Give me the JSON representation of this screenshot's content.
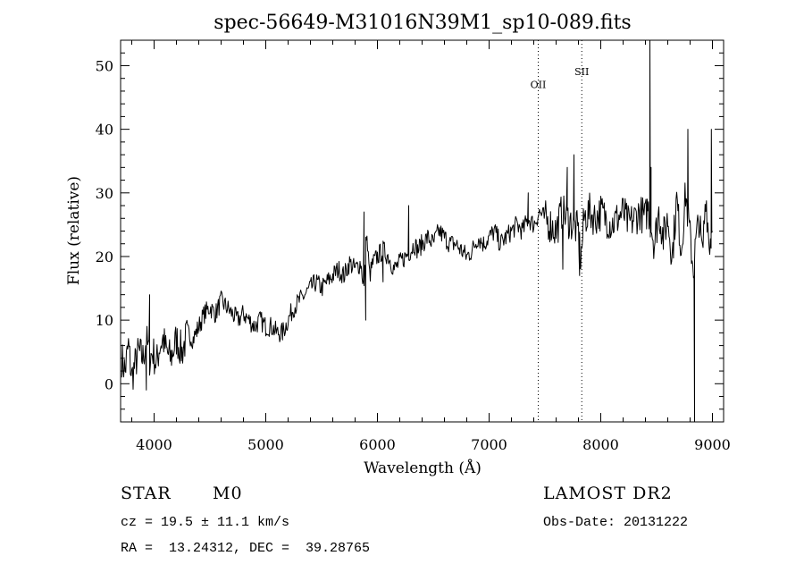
{
  "chart_data": {
    "type": "line",
    "title": "spec-56649-M31016N39M1_sp10-089.fits",
    "xlabel": "Wavelength (Å)",
    "ylabel": "Flux (relative)",
    "xlim": [
      3700,
      9100
    ],
    "ylim": [
      -6,
      54
    ],
    "x_ticks": [
      4000,
      5000,
      6000,
      7000,
      8000,
      9000
    ],
    "y_ticks": [
      0,
      10,
      20,
      30,
      40,
      50
    ],
    "grid": false,
    "line_color": "#000000",
    "series": [
      {
        "x": [
          3710,
          3740,
          3770,
          3800,
          3830,
          3860,
          3900,
          3930,
          3960,
          3990,
          4020,
          4050,
          4080,
          4110,
          4150,
          4200,
          4250,
          4300,
          4350,
          4400,
          4450,
          4500,
          4550,
          4600,
          4650,
          4700,
          4750,
          4800,
          4850,
          4900,
          4950,
          5000,
          5050,
          5100,
          5150,
          5200,
          5250,
          5300,
          5350,
          5400,
          5450,
          5500,
          5550,
          5600,
          5650,
          5700,
          5750,
          5800,
          5850,
          5880,
          5900,
          5930,
          5960,
          6000,
          6050,
          6100,
          6150,
          6200,
          6250,
          6300,
          6330,
          6360,
          6400,
          6450,
          6500,
          6550,
          6600,
          6650,
          6700,
          6750,
          6800,
          6850,
          6900,
          6950,
          7000,
          7050,
          7100,
          7150,
          7200,
          7250,
          7300,
          7350,
          7400,
          7450,
          7500,
          7550,
          7600,
          7650,
          7700,
          7750,
          7800,
          7820,
          7850,
          7900,
          7950,
          8000,
          8050,
          8100,
          8150,
          8200,
          8250,
          8300,
          8350,
          8400,
          8420,
          8450,
          8480,
          8520,
          8560,
          8600,
          8640,
          8680,
          8720,
          8760,
          8800,
          8830,
          8850,
          8880,
          8910,
          8940,
          8970,
          9000
        ],
        "y": [
          4,
          2,
          6,
          1,
          3,
          5,
          4,
          7,
          4,
          5,
          3,
          6,
          7,
          5,
          4,
          7,
          5,
          8,
          7,
          9,
          11,
          12,
          11,
          13,
          12,
          11,
          10,
          11,
          10,
          9,
          10,
          9,
          9,
          8,
          8,
          10,
          12,
          13,
          14,
          15,
          16,
          15,
          16,
          17,
          18,
          17,
          19,
          18,
          19,
          15,
          24,
          17,
          19,
          20,
          21,
          20,
          18,
          19,
          20,
          21,
          22,
          21,
          22,
          23,
          22,
          24,
          23,
          22,
          22,
          21,
          20,
          21,
          23,
          22,
          23,
          24,
          22,
          23,
          24,
          25,
          24,
          26,
          25,
          27,
          26,
          25,
          24,
          27,
          26,
          25,
          24,
          19,
          26,
          27,
          26,
          27,
          26,
          25,
          26,
          27,
          25,
          26,
          27,
          26,
          28,
          25,
          22,
          27,
          23,
          26,
          20,
          29,
          21,
          30,
          23,
          18,
          22,
          26,
          20,
          30,
          22,
          24
        ],
        "spikes": [
          {
            "x": 8440,
            "y": 54
          },
          {
            "x": 8840,
            "y": -6
          },
          {
            "x": 8780,
            "y": 40
          },
          {
            "x": 8990,
            "y": 40
          },
          {
            "x": 3960,
            "y": 14
          },
          {
            "x": 3930,
            "y": -1
          },
          {
            "x": 7760,
            "y": 36
          },
          {
            "x": 7700,
            "y": 34
          },
          {
            "x": 7660,
            "y": 18
          },
          {
            "x": 7810,
            "y": 17
          },
          {
            "x": 5880,
            "y": 27
          },
          {
            "x": 5895,
            "y": 10
          },
          {
            "x": 6280,
            "y": 28
          },
          {
            "x": 6050,
            "y": 16
          },
          {
            "x": 7350,
            "y": 30
          },
          {
            "x": 8450,
            "y": 34
          }
        ]
      }
    ],
    "lines": [
      {
        "label": "OII",
        "x": 7440,
        "label_y": 46.5
      },
      {
        "label": "SII",
        "x": 7830,
        "label_y": 48.5
      }
    ]
  },
  "info": {
    "object_type": "STAR",
    "subclass": "M0",
    "survey": "LAMOST DR2",
    "redshift": "cz = 19.5 ± 11.1 km/s",
    "obs_date": "Obs-Date: 20131222",
    "coords": "RA =  13.24312, DEC =  39.28765"
  }
}
